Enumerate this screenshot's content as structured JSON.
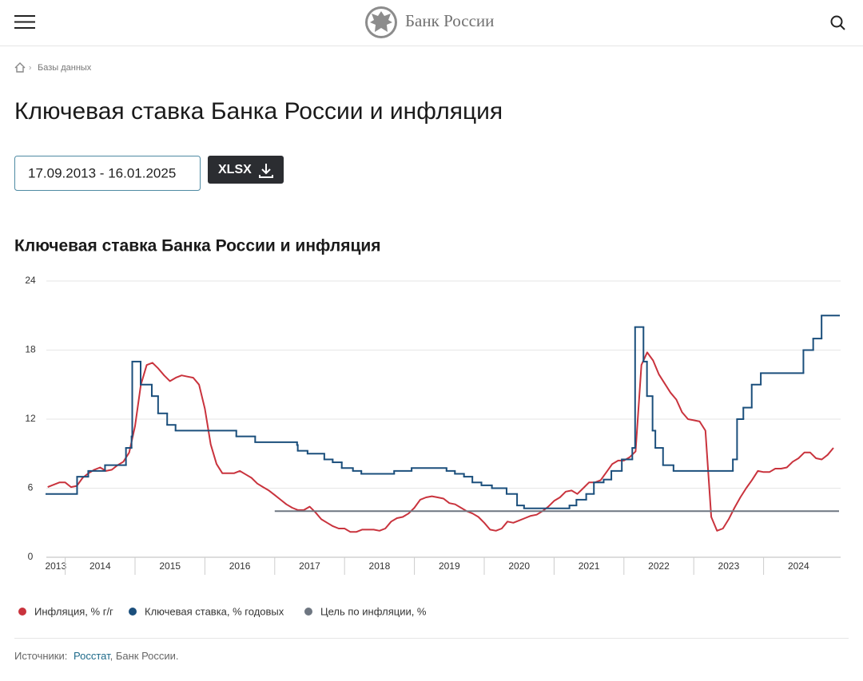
{
  "header": {
    "logo_text": "Банк России"
  },
  "breadcrumb": [
    "Базы данных"
  ],
  "page_title": "Ключевая ставка Банка России и инфляция",
  "date_range": "17.09.2013 - 16.01.2025",
  "download_button": "XLSX",
  "chart_data": {
    "type": "line",
    "title": "Ключевая ставка Банка России и инфляция",
    "xlim": [
      2013.73,
      2025.08
    ],
    "xticks": [
      2013,
      2014,
      2015,
      2016,
      2017,
      2018,
      2019,
      2020,
      2021,
      2022,
      2023,
      2024
    ],
    "ylim": [
      0,
      24
    ],
    "yticks": [
      0,
      6,
      12,
      18,
      24
    ],
    "grid": true,
    "series": [
      {
        "name": "Инфляция, % г/г",
        "color": "#c9333d",
        "x": [
          2013.75,
          2013.833,
          2013.917,
          2014,
          2014.083,
          2014.167,
          2014.25,
          2014.333,
          2014.417,
          2014.5,
          2014.583,
          2014.667,
          2014.75,
          2014.833,
          2014.917,
          2015,
          2015.083,
          2015.167,
          2015.25,
          2015.333,
          2015.417,
          2015.5,
          2015.583,
          2015.667,
          2015.75,
          2015.833,
          2015.917,
          2016,
          2016.083,
          2016.167,
          2016.25,
          2016.333,
          2016.417,
          2016.5,
          2016.583,
          2016.667,
          2016.75,
          2016.833,
          2016.917,
          2017,
          2017.083,
          2017.167,
          2017.25,
          2017.333,
          2017.417,
          2017.5,
          2017.583,
          2017.667,
          2017.75,
          2017.833,
          2017.917,
          2018,
          2018.083,
          2018.167,
          2018.25,
          2018.333,
          2018.417,
          2018.5,
          2018.583,
          2018.667,
          2018.75,
          2018.833,
          2018.917,
          2019,
          2019.083,
          2019.167,
          2019.25,
          2019.333,
          2019.417,
          2019.5,
          2019.583,
          2019.667,
          2019.75,
          2019.833,
          2019.917,
          2020,
          2020.083,
          2020.167,
          2020.25,
          2020.333,
          2020.417,
          2020.5,
          2020.583,
          2020.667,
          2020.75,
          2020.833,
          2020.917,
          2021,
          2021.083,
          2021.167,
          2021.25,
          2021.333,
          2021.417,
          2021.5,
          2021.583,
          2021.667,
          2021.75,
          2021.833,
          2021.917,
          2022,
          2022.083,
          2022.167,
          2022.25,
          2022.333,
          2022.417,
          2022.5,
          2022.583,
          2022.667,
          2022.75,
          2022.833,
          2022.917,
          2023,
          2023.083,
          2023.167,
          2023.25,
          2023.333,
          2023.417,
          2023.5,
          2023.583,
          2023.667,
          2023.75,
          2023.833,
          2023.917,
          2024,
          2024.083,
          2024.167,
          2024.25,
          2024.333,
          2024.417,
          2024.5,
          2024.583,
          2024.667,
          2024.75,
          2024.833,
          2024.917,
          2025
        ],
        "values": [
          6.1,
          6.3,
          6.5,
          6.5,
          6.1,
          6.2,
          6.9,
          7.3,
          7.6,
          7.8,
          7.5,
          7.6,
          8.0,
          8.3,
          9.1,
          11.4,
          15.0,
          16.7,
          16.9,
          16.4,
          15.8,
          15.3,
          15.6,
          15.8,
          15.7,
          15.6,
          15.0,
          12.9,
          9.8,
          8.1,
          7.3,
          7.3,
          7.3,
          7.5,
          7.2,
          6.9,
          6.4,
          6.1,
          5.8,
          5.4,
          5.0,
          4.6,
          4.3,
          4.1,
          4.1,
          4.4,
          3.9,
          3.3,
          3.0,
          2.7,
          2.5,
          2.5,
          2.2,
          2.2,
          2.4,
          2.4,
          2.4,
          2.3,
          2.5,
          3.1,
          3.4,
          3.5,
          3.8,
          4.3,
          5.0,
          5.2,
          5.3,
          5.2,
          5.1,
          4.7,
          4.6,
          4.3,
          4.0,
          3.8,
          3.5,
          3.0,
          2.4,
          2.3,
          2.5,
          3.1,
          3.0,
          3.2,
          3.4,
          3.6,
          3.7,
          4.0,
          4.4,
          4.9,
          5.2,
          5.7,
          5.8,
          5.5,
          6.0,
          6.5,
          6.5,
          6.7,
          7.4,
          8.1,
          8.4,
          8.4,
          8.7,
          9.2,
          16.7,
          17.8,
          17.1,
          15.9,
          15.1,
          14.3,
          13.7,
          12.6,
          12.0,
          11.9,
          11.8,
          11.0,
          3.5,
          2.3,
          2.5,
          3.3,
          4.3,
          5.2,
          6.0,
          6.7,
          7.5,
          7.4,
          7.4,
          7.7,
          7.7,
          7.8,
          8.3,
          8.6,
          9.1,
          9.1,
          8.6,
          8.5,
          8.9,
          9.5
        ]
      },
      {
        "name": "Ключевая ставка, % годовых",
        "color": "#1b4f7c",
        "step": "post",
        "x": [
          2013.73,
          2014.17,
          2014.33,
          2014.57,
          2014.87,
          2014.95,
          2014.96,
          2015.08,
          2015.24,
          2015.33,
          2015.46,
          2015.58,
          2016.45,
          2016.72,
          2017.32,
          2017.33,
          2017.47,
          2017.71,
          2017.83,
          2017.96,
          2018.12,
          2018.24,
          2018.71,
          2018.96,
          2019.46,
          2019.58,
          2019.71,
          2019.83,
          2019.96,
          2020.11,
          2020.32,
          2020.47,
          2020.57,
          2021.22,
          2021.32,
          2021.46,
          2021.57,
          2021.71,
          2021.82,
          2021.97,
          2022.12,
          2022.16,
          2022.28,
          2022.33,
          2022.41,
          2022.45,
          2022.56,
          2022.71,
          2023.56,
          2023.62,
          2023.71,
          2023.83,
          2023.96,
          2024.57,
          2024.71,
          2024.83
        ],
        "values": [
          5.5,
          7,
          7.5,
          8,
          9.5,
          10.5,
          17,
          15,
          14,
          12.5,
          11.5,
          11,
          10.5,
          10,
          9.75,
          9.25,
          9,
          8.5,
          8.25,
          7.75,
          7.5,
          7.25,
          7.5,
          7.75,
          7.5,
          7.25,
          7,
          6.5,
          6.25,
          6,
          5.5,
          4.5,
          4.25,
          4.5,
          5,
          5.5,
          6.5,
          6.75,
          7.5,
          8.5,
          9.5,
          20,
          17,
          14,
          11,
          9.5,
          8,
          7.5,
          8.5,
          12,
          13,
          15,
          16,
          18,
          19,
          21
        ]
      },
      {
        "name": "Цель по инфляции, %",
        "color": "#6e7681",
        "x": [
          2017.0,
          2025.08
        ],
        "values": [
          4,
          4
        ]
      }
    ]
  },
  "sources": {
    "prefix": "Источники:",
    "link": "Росстат",
    "suffix": ", Банк России."
  }
}
